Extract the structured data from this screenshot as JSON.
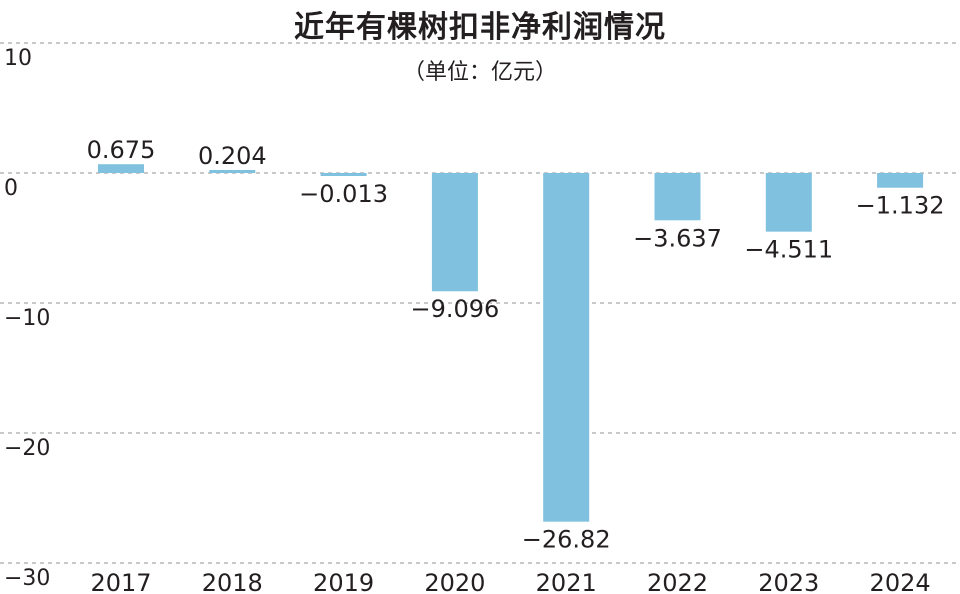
{
  "chart_data": {
    "type": "bar",
    "title": "近年有棵树扣非净利润情况",
    "subtitle": "（单位：亿元）",
    "categories": [
      "2017",
      "2018",
      "2019",
      "2020",
      "2021",
      "2022",
      "2023",
      "2024"
    ],
    "values": [
      0.675,
      0.204,
      -0.013,
      -9.096,
      -26.82,
      -3.637,
      -4.511,
      -1.132
    ],
    "value_labels": [
      "0.675",
      "0.204",
      "−0.013",
      "−9.096",
      "−26.82",
      "−3.637",
      "−4.511",
      "−1.132"
    ],
    "ylim": [
      -30,
      10
    ],
    "yticks": [
      10,
      0,
      -10,
      -20,
      -30
    ],
    "ytick_labels": [
      "10",
      "0",
      "−10",
      "−20",
      "−30"
    ],
    "grid": "horizontal dashed",
    "bar_color": "#7fc1df"
  }
}
